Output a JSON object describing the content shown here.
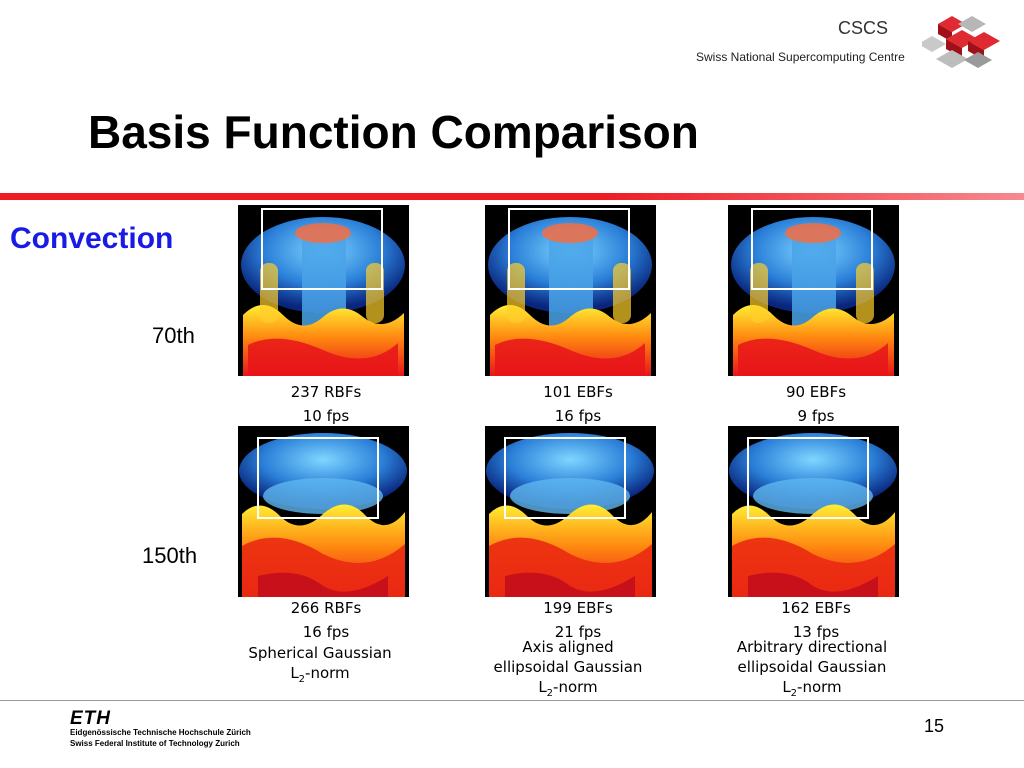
{
  "header": {
    "org_short": "CSCS",
    "org_full": "Swiss National Supercomputing Centre",
    "accent_color": "#ee1c25"
  },
  "slide": {
    "title": "Basis Function Comparison",
    "section": "Convection",
    "section_color": "#1a1ae6",
    "page_number": "15"
  },
  "rows": [
    {
      "label": "70th",
      "panels": [
        {
          "count": "237 RBFs",
          "fps": "10 fps"
        },
        {
          "count": "101 EBFs",
          "fps": "16 fps"
        },
        {
          "count": "90 EBFs",
          "fps": "9 fps"
        }
      ]
    },
    {
      "label": "150th",
      "panels": [
        {
          "count": "266 RBFs",
          "fps": "16 fps"
        },
        {
          "count": "199 EBFs",
          "fps": "21 fps"
        },
        {
          "count": "162 EBFs",
          "fps": "13 fps"
        }
      ]
    }
  ],
  "columns": [
    {
      "line1": "Spherical Gaussian",
      "line2": "",
      "norm": "-norm"
    },
    {
      "line1": "Axis aligned",
      "line2": "ellipsoidal Gaussian",
      "norm": "-norm"
    },
    {
      "line1": "Arbitrary directional",
      "line2": "ellipsoidal Gaussian",
      "norm": "-norm"
    }
  ],
  "norm_symbol": {
    "letter": "L",
    "subscript": "2"
  },
  "footer": {
    "logo": "ETH",
    "line1": "Eidgenössische Technische Hochschule Zürich",
    "line2": "Swiss Federal Institute of Technology Zurich"
  }
}
